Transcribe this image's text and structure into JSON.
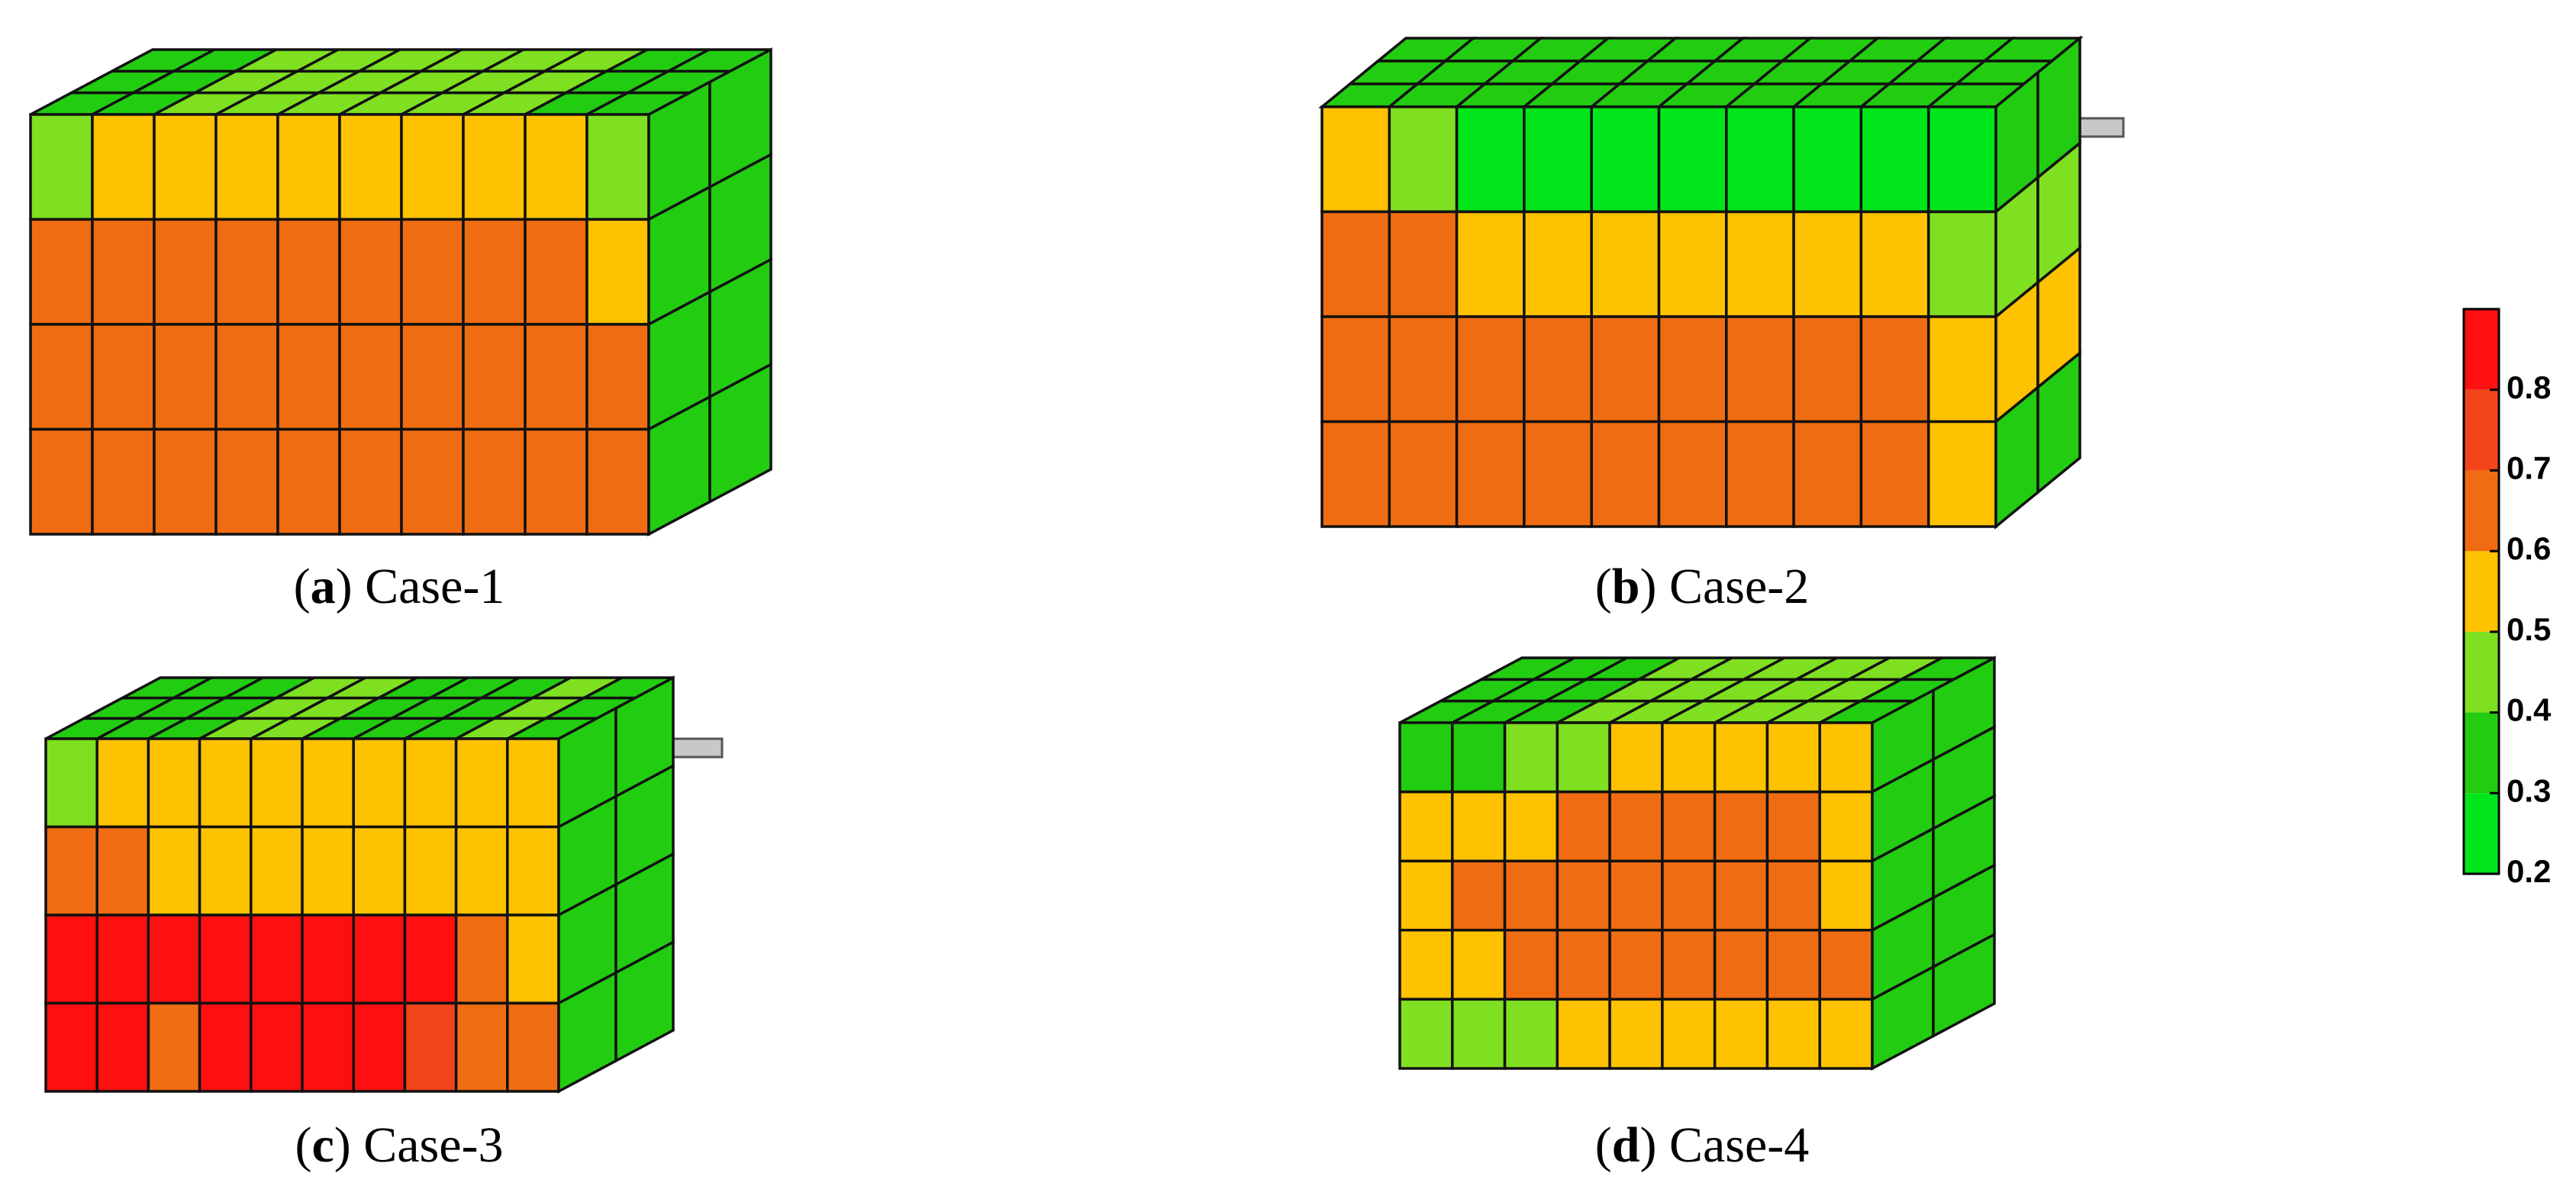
{
  "panels": [
    {
      "caption_parts": [
        "(",
        "a",
        ") Case-1"
      ],
      "front": [
        [
          0.45,
          0.55,
          0.55,
          0.55,
          0.55,
          0.55,
          0.55,
          0.55,
          0.55,
          0.45
        ],
        [
          0.65,
          0.65,
          0.65,
          0.65,
          0.65,
          0.65,
          0.65,
          0.65,
          0.65,
          0.55
        ],
        [
          0.65,
          0.65,
          0.65,
          0.65,
          0.65,
          0.65,
          0.65,
          0.65,
          0.65,
          0.65
        ],
        [
          0.65,
          0.65,
          0.65,
          0.65,
          0.65,
          0.65,
          0.65,
          0.65,
          0.65,
          0.65
        ]
      ],
      "top": [
        0.35,
        0.35,
        0.45,
        0.45,
        0.45,
        0.45,
        0.45,
        0.45,
        0.35,
        0.35
      ],
      "side": [
        0.35,
        0.35,
        0.35,
        0.35
      ]
    },
    {
      "caption_parts": [
        "(",
        "b",
        ") Case-2"
      ],
      "front": [
        [
          0.55,
          0.45,
          0.25,
          0.25,
          0.25,
          0.25,
          0.25,
          0.25,
          0.25,
          0.25
        ],
        [
          0.65,
          0.65,
          0.55,
          0.55,
          0.55,
          0.55,
          0.55,
          0.55,
          0.55,
          0.45
        ],
        [
          0.65,
          0.65,
          0.65,
          0.65,
          0.65,
          0.65,
          0.65,
          0.65,
          0.65,
          0.55
        ],
        [
          0.65,
          0.65,
          0.65,
          0.65,
          0.65,
          0.65,
          0.65,
          0.65,
          0.65,
          0.55
        ]
      ],
      "top": [
        0.35,
        0.35,
        0.35,
        0.35,
        0.35,
        0.35,
        0.35,
        0.35,
        0.35,
        0.35
      ],
      "side": [
        0.35,
        0.45,
        0.55,
        0.35
      ]
    },
    {
      "caption_parts": [
        "(",
        "c",
        ") Case-3"
      ],
      "front": [
        [
          0.45,
          0.55,
          0.55,
          0.55,
          0.55,
          0.55,
          0.55,
          0.55,
          0.55,
          0.55
        ],
        [
          0.65,
          0.65,
          0.55,
          0.55,
          0.55,
          0.55,
          0.55,
          0.55,
          0.55,
          0.55
        ],
        [
          0.85,
          0.85,
          0.85,
          0.85,
          0.85,
          0.85,
          0.85,
          0.85,
          0.65,
          0.55
        ],
        [
          0.85,
          0.85,
          0.65,
          0.85,
          0.85,
          0.85,
          0.85,
          0.75,
          0.65,
          0.65
        ]
      ],
      "top": [
        0.35,
        0.35,
        0.35,
        0.45,
        0.45,
        0.35,
        0.35,
        0.35,
        0.45,
        0.35
      ],
      "side": [
        0.35,
        0.35,
        0.35,
        0.35
      ]
    },
    {
      "caption_parts": [
        "(",
        "d",
        ") Case-4"
      ],
      "front": [
        [
          0.35,
          0.35,
          0.45,
          0.45,
          0.55,
          0.55,
          0.55,
          0.55,
          0.55
        ],
        [
          0.55,
          0.55,
          0.55,
          0.65,
          0.65,
          0.65,
          0.65,
          0.65,
          0.55
        ],
        [
          0.55,
          0.65,
          0.65,
          0.65,
          0.65,
          0.65,
          0.65,
          0.65,
          0.55
        ],
        [
          0.55,
          0.55,
          0.65,
          0.65,
          0.65,
          0.65,
          0.65,
          0.65,
          0.65
        ],
        [
          0.45,
          0.45,
          0.45,
          0.55,
          0.55,
          0.55,
          0.55,
          0.55,
          0.55
        ]
      ],
      "top": [
        0.35,
        0.35,
        0.35,
        0.45,
        0.45,
        0.45,
        0.45,
        0.45,
        0.35
      ],
      "side": [
        0.35,
        0.35,
        0.35,
        0.35,
        0.35
      ]
    }
  ],
  "colorbar": {
    "lim": [
      0.2,
      0.9
    ],
    "ticks": [
      0.2,
      0.3,
      0.4,
      0.5,
      0.6,
      0.7,
      0.8
    ],
    "colors": [
      "#00e61a",
      "#22cc10",
      "#7ee020",
      "#ffc200",
      "#f06c12",
      "#f2441a",
      "#ff1010"
    ]
  }
}
